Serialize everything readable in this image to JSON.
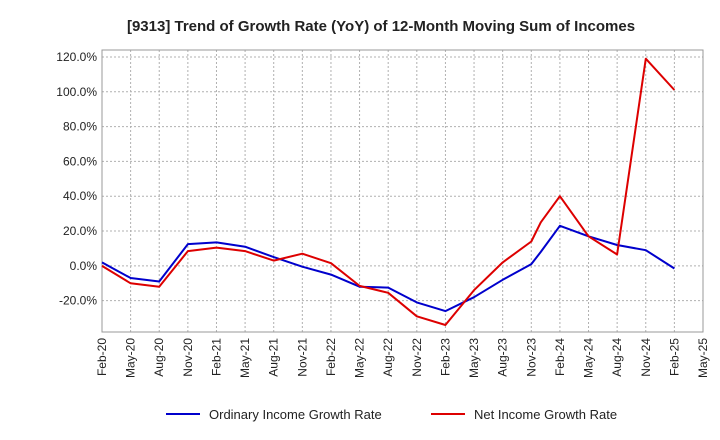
{
  "chart_data": {
    "type": "line",
    "title": "[9313]  Trend of Growth Rate (YoY) of 12-Month Moving Sum of Incomes",
    "xlabel": "",
    "ylabel": "",
    "x": [
      "Feb-20",
      "May-20",
      "Aug-20",
      "Nov-20",
      "Feb-21",
      "May-21",
      "Aug-21",
      "Nov-21",
      "Feb-22",
      "May-22",
      "Aug-22",
      "Nov-22",
      "Feb-23",
      "May-23",
      "Aug-23",
      "Nov-23",
      "Feb-24",
      "May-24",
      "Aug-24",
      "Nov-24",
      "Feb-25",
      "May-25"
    ],
    "x_tick_labels": [
      "Feb-20",
      "May-20",
      "Aug-20",
      "Nov-20",
      "Feb-21",
      "May-21",
      "Aug-21",
      "Nov-21",
      "Feb-22",
      "May-22",
      "Aug-22",
      "Nov-22",
      "Feb-23",
      "May-23",
      "Aug-23",
      "Nov-23",
      "Feb-24",
      "May-24",
      "Aug-24",
      "Nov-24",
      "Feb-25",
      "May-25"
    ],
    "ylim": [
      -38,
      124
    ],
    "y_ticks": [
      -20,
      0,
      20,
      40,
      60,
      80,
      100,
      120
    ],
    "y_tick_labels": [
      "-20.0%",
      "0.0%",
      "20.0%",
      "40.0%",
      "60.0%",
      "80.0%",
      "100.0%",
      "120.0%"
    ],
    "grid": true,
    "legend_position": "bottom",
    "series": [
      {
        "name": "Ordinary Income Growth Rate",
        "color": "#0000cc",
        "x": [
          "Feb-20",
          "Mar-20",
          "May-20",
          "Aug-20",
          "Nov-20",
          "Feb-21",
          "May-21",
          "Aug-21",
          "Nov-21",
          "Feb-22",
          "May-22",
          "Aug-22",
          "Nov-22",
          "Feb-23",
          "May-23",
          "Aug-23",
          "Nov-23",
          "Dec-23",
          "Feb-24",
          "May-24",
          "Aug-24",
          "Nov-24",
          "Feb-25"
        ],
        "values": [
          2,
          -1,
          -7,
          -9,
          12.5,
          13.5,
          11,
          5,
          -0.5,
          -5,
          -12,
          -12.5,
          -21,
          -26,
          -18,
          -8,
          1,
          8,
          23,
          17,
          12,
          9,
          -1.5
        ]
      },
      {
        "name": "Net Income Growth Rate",
        "color": "#dd0000",
        "x": [
          "Feb-20",
          "May-20",
          "Aug-20",
          "Nov-20",
          "Feb-21",
          "May-21",
          "Aug-21",
          "Nov-21",
          "Feb-22",
          "May-22",
          "Aug-22",
          "Nov-22",
          "Feb-23",
          "May-23",
          "Aug-23",
          "Nov-23",
          "Dec-23",
          "Feb-24",
          "May-24",
          "Aug-24",
          "Nov-24",
          "Feb-25"
        ],
        "values": [
          0,
          -10,
          -12,
          8.5,
          10.5,
          8.5,
          3,
          7,
          1.5,
          -11.5,
          -15.5,
          -29,
          -34,
          -14,
          2,
          14,
          25,
          40,
          17,
          6.5,
          119,
          101
        ]
      }
    ]
  }
}
